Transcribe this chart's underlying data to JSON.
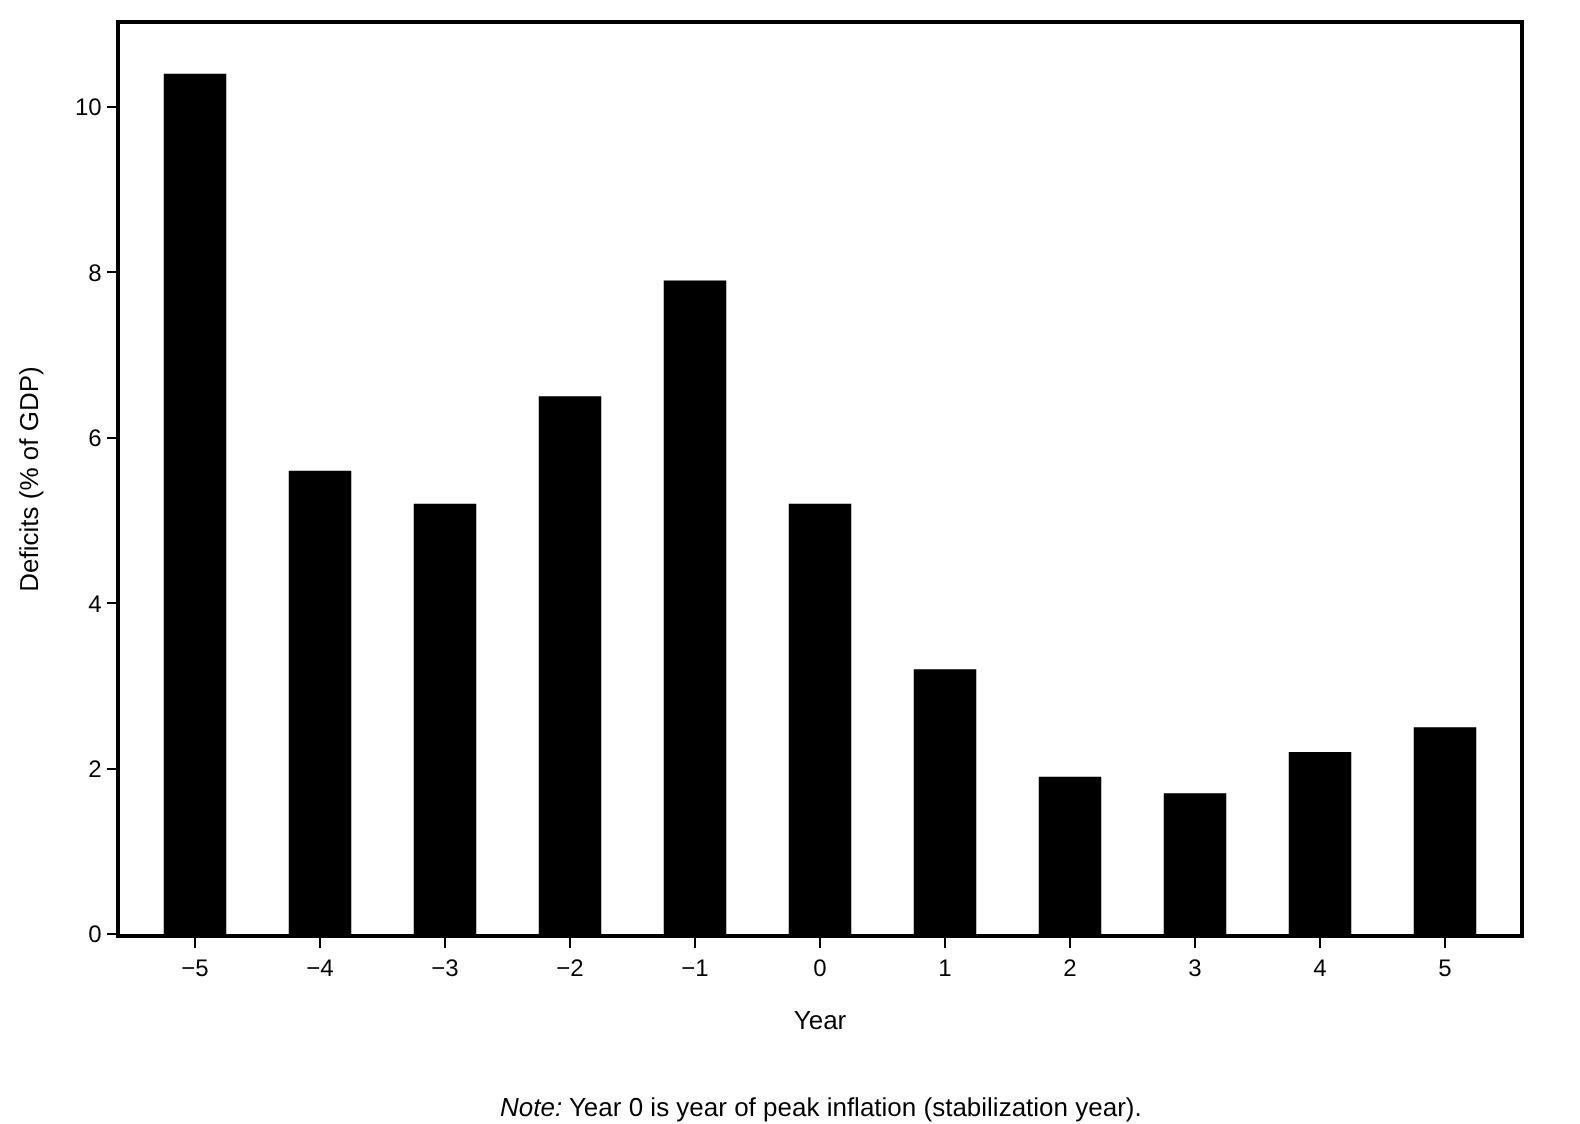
{
  "chart_data": {
    "type": "bar",
    "categories": [
      "−5",
      "−4",
      "−3",
      "−2",
      "−1",
      "0",
      "1",
      "2",
      "3",
      "4",
      "5"
    ],
    "values": [
      10.4,
      5.6,
      5.2,
      6.5,
      7.9,
      5.2,
      3.2,
      1.9,
      1.7,
      2.2,
      2.5
    ],
    "color": "#000000",
    "xlabel": "Year",
    "ylabel": "Deficits (% of GDP)",
    "ylim": [
      0,
      11
    ],
    "yticks": [
      0,
      2,
      4,
      6,
      8,
      10
    ],
    "annotations": [
      "Note: Year 0 is year of peak inflation (stabilization year)."
    ]
  }
}
